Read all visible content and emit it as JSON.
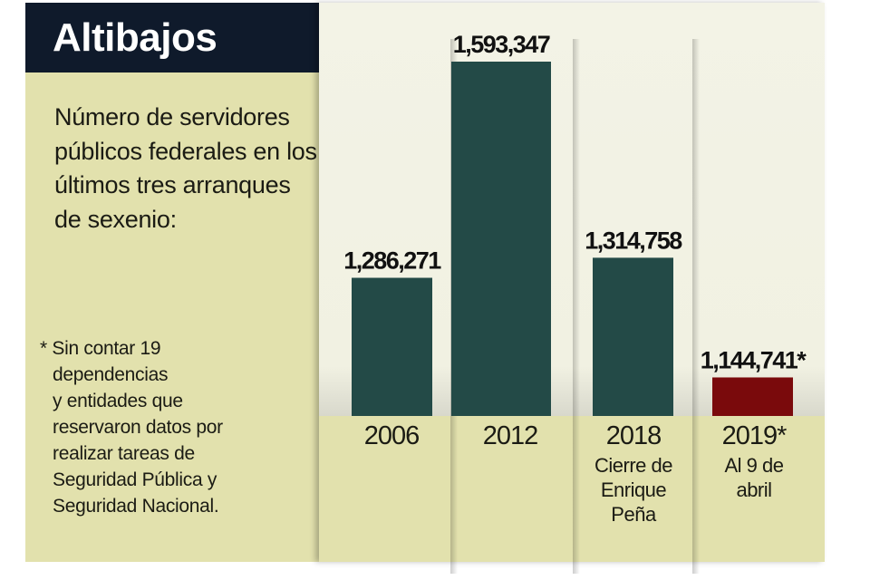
{
  "title": "Altibajos",
  "subtitle": "Número de servidores públicos federales en los últimos tres arranques de sexenio:",
  "note": [
    "* Sin contar 19",
    "dependencias",
    "y entidades que",
    "reservaron datos por",
    "realizar tareas de",
    "Seguridad Pública y",
    "Seguridad Nacional."
  ],
  "colors": {
    "bar": "#234a47",
    "highlight_bar": "#7a0a0c",
    "title_bg": "#0f1a2b",
    "panel": "#e2e1ad"
  },
  "chart_data": {
    "type": "bar",
    "title": "Altibajos",
    "categories": [
      "2006",
      "2012",
      "2018",
      "2019*"
    ],
    "category_notes": [
      "",
      "",
      "Cierre de Enrique Peña",
      "Al 9 de abril"
    ],
    "values": [
      1286271,
      1593347,
      1314758,
      1144741
    ],
    "data_labels": [
      "1,286,271",
      "1,593,347",
      "1,314,758",
      "1,144,741*"
    ],
    "highlight": [
      "2019*"
    ],
    "ylim": [
      1090000,
      1600000
    ],
    "grid": false,
    "xlabel": "",
    "ylabel": ""
  }
}
